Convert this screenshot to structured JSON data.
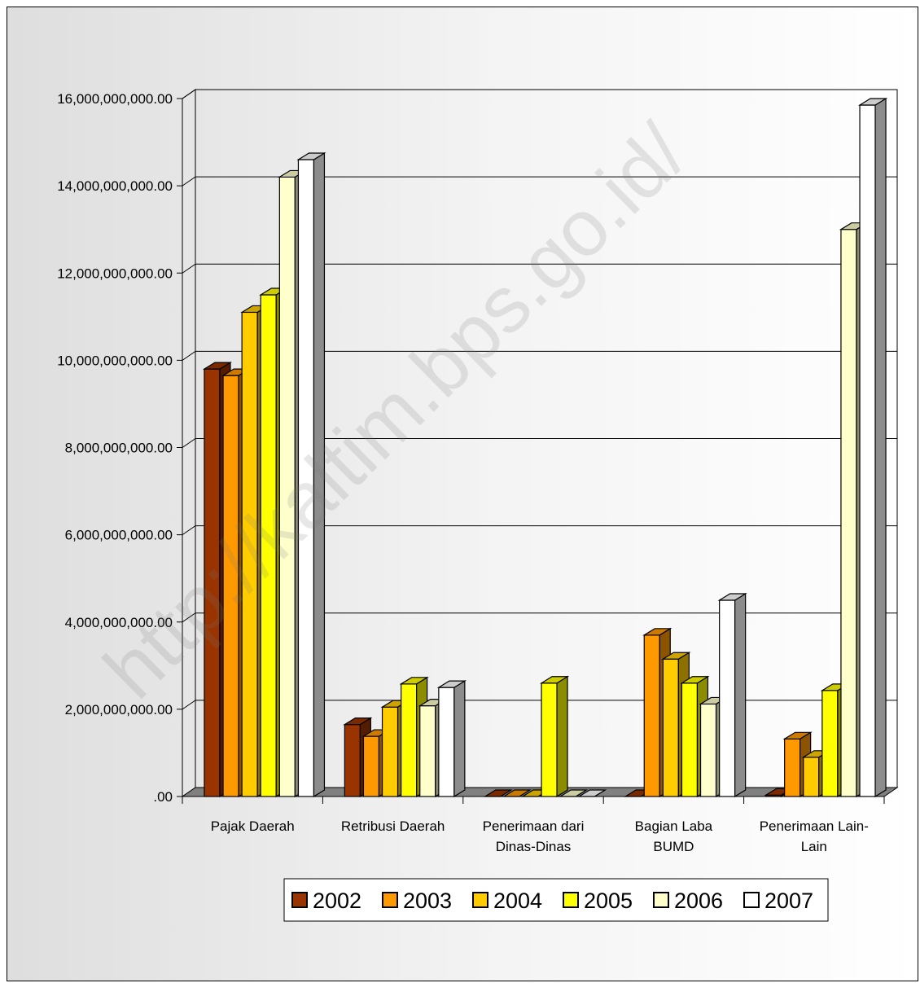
{
  "watermark": "http://kaltim.bps.go.id/",
  "colors": {
    "2002": "#993300",
    "2003": "#ff9900",
    "2004": "#ffcc00",
    "2005": "#ffff00",
    "2006": "#ffffcc",
    "2007": "#ffffff"
  },
  "chart_data": {
    "type": "bar",
    "style": "3d-clustered-column",
    "title": "",
    "xlabel": "",
    "ylabel": "",
    "ylim": [
      0,
      16000000000
    ],
    "y_ticks": [
      ".00",
      "2,000,000,000.00",
      "4,000,000,000.00",
      "6,000,000,000.00",
      "8,000,000,000.00",
      "10,000,000,000.00",
      "12,000,000,000.00",
      "14,000,000,000.00",
      "16,000,000,000.00"
    ],
    "grid": true,
    "legend_position": "bottom",
    "categories": [
      [
        "Pajak Daerah"
      ],
      [
        "Retribusi Daerah"
      ],
      [
        "Penerimaan dari",
        "Dinas-Dinas"
      ],
      [
        "Bagian Laba",
        "BUMD"
      ],
      [
        "Penerimaan Lain-",
        "Lain"
      ]
    ],
    "series": [
      {
        "name": "2002",
        "values": [
          9800000000,
          1650000000,
          0,
          0,
          30000000
        ]
      },
      {
        "name": "2003",
        "values": [
          9650000000,
          1380000000,
          0,
          3700000000,
          1320000000
        ]
      },
      {
        "name": "2004",
        "values": [
          11100000000,
          2050000000,
          0,
          3150000000,
          900000000
        ]
      },
      {
        "name": "2005",
        "values": [
          11500000000,
          2580000000,
          2600000000,
          2600000000,
          2430000000
        ]
      },
      {
        "name": "2006",
        "values": [
          14200000000,
          2080000000,
          0,
          2120000000,
          13000000000
        ]
      },
      {
        "name": "2007",
        "values": [
          14600000000,
          2500000000,
          0,
          4500000000,
          15850000000
        ]
      }
    ]
  }
}
